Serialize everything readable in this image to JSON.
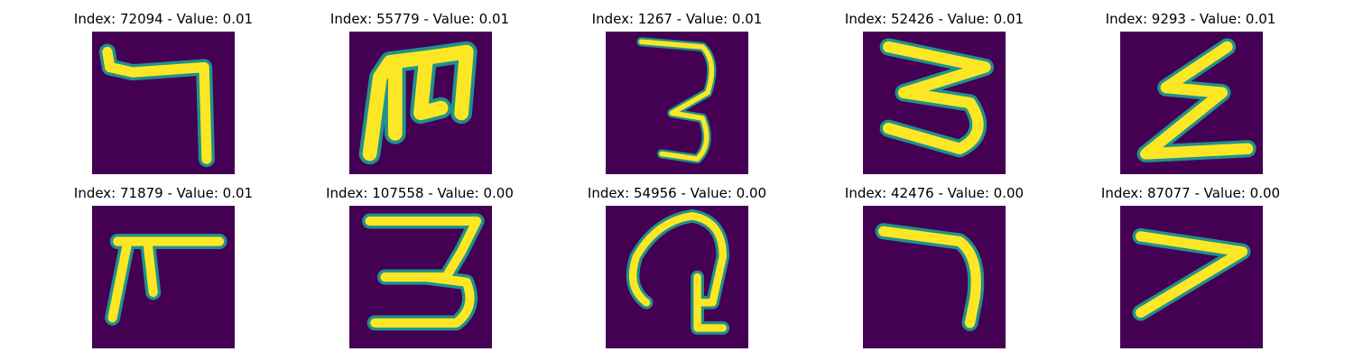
{
  "colors": {
    "background": "#440154",
    "stroke_mid": "#21918c",
    "stroke_core": "#fde725",
    "stroke_edge": "#3b528b"
  },
  "panels": [
    {
      "title": "Index: 72094 - Value: 0.01"
    },
    {
      "title": "Index: 55779 - Value: 0.01"
    },
    {
      "title": "Index: 1267 - Value: 0.01"
    },
    {
      "title": "Index: 52426 - Value: 0.01"
    },
    {
      "title": "Index: 9293 - Value: 0.01"
    },
    {
      "title": "Index: 71879 - Value: 0.01"
    },
    {
      "title": "Index: 107558 - Value: 0.00"
    },
    {
      "title": "Index: 54956 - Value: 0.00"
    },
    {
      "title": "Index: 42476 - Value: 0.00"
    },
    {
      "title": "Index: 87077 - Value: 0.00"
    }
  ]
}
